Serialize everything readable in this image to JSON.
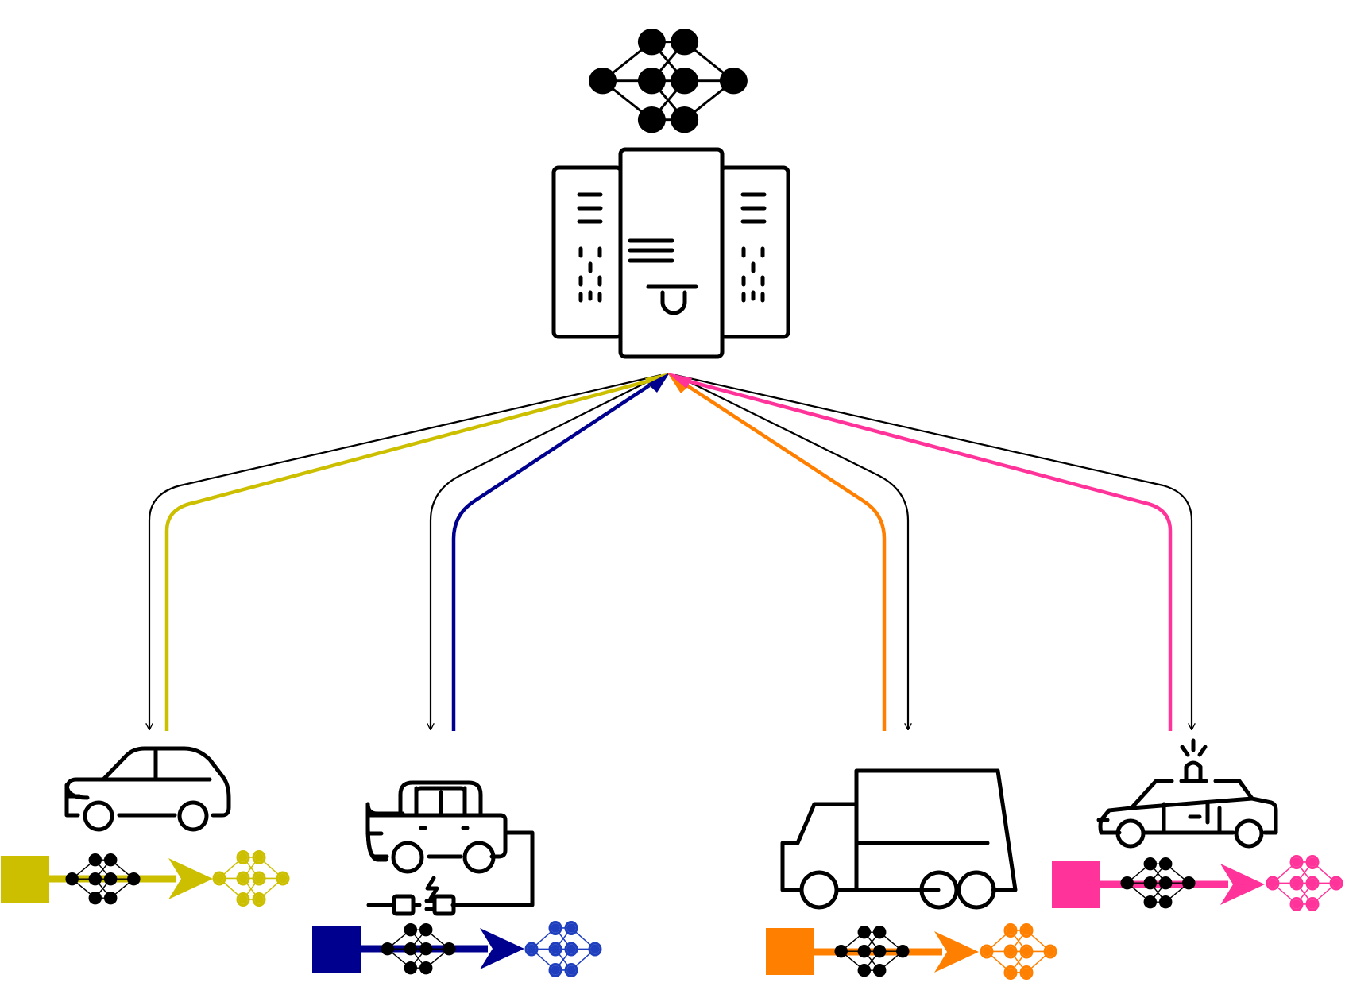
{
  "server": {
    "icon": "server-rack-icon",
    "model_icon": "neural-network-icon",
    "model_color": "#000000"
  },
  "global_color": "#000000",
  "clients": [
    {
      "id": "car",
      "icon": "car-icon",
      "color": "#CCBF00",
      "data_icon": "data-square-icon",
      "local_model_icon": "neural-network-icon",
      "updated_model_icon": "neural-network-icon"
    },
    {
      "id": "electric-car",
      "icon": "electric-car-icon",
      "color": "#00008F",
      "data_icon": "data-square-icon",
      "local_model_icon": "neural-network-icon",
      "updated_model_icon": "neural-network-icon",
      "updated_model_color": "#1F3FBF"
    },
    {
      "id": "truck",
      "icon": "truck-icon",
      "color": "#FF8000",
      "data_icon": "data-square-icon",
      "local_model_icon": "neural-network-icon",
      "updated_model_icon": "neural-network-icon"
    },
    {
      "id": "police-car",
      "icon": "police-car-icon",
      "color": "#FF3399",
      "data_icon": "data-square-icon",
      "local_model_icon": "neural-network-icon",
      "updated_model_icon": "neural-network-icon"
    }
  ]
}
